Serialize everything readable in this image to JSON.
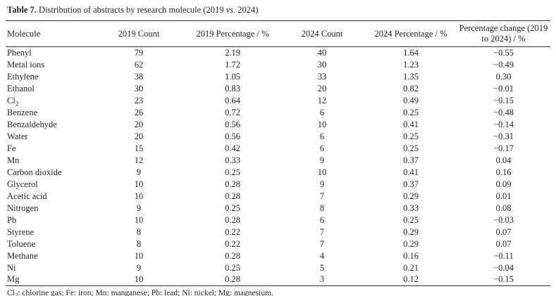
{
  "title": {
    "label": "Table 7.",
    "text": " Distribution of abstracts by research molecule (2019 ",
    "italic": "vs.",
    "suffix": " 2024)"
  },
  "table": {
    "headers": [
      "Molecule",
      "2019 Count",
      "2019 Percentage / %",
      "2024 Count",
      "2024 Percentage / %",
      "Percentage change (2019 to 2024) / %"
    ],
    "rows": [
      {
        "molecule": "Phenyl",
        "sub": "",
        "count_2019": "79",
        "pct_2019": "2.19",
        "count_2024": "40",
        "pct_2024": "1.64",
        "change": "−0.55"
      },
      {
        "molecule": "Metal ions",
        "sub": "",
        "count_2019": "62",
        "pct_2019": "1.72",
        "count_2024": "30",
        "pct_2024": "1.23",
        "change": "−0.49"
      },
      {
        "molecule": "Ethylene",
        "sub": "",
        "count_2019": "38",
        "pct_2019": "1.05",
        "count_2024": "33",
        "pct_2024": "1.35",
        "change": "0.30"
      },
      {
        "molecule": "Ethanol",
        "sub": "",
        "count_2019": "30",
        "pct_2019": "0.83",
        "count_2024": "20",
        "pct_2024": "0.82",
        "change": "−0.01"
      },
      {
        "molecule": "Cl",
        "sub": "2",
        "count_2019": "23",
        "pct_2019": "0.64",
        "count_2024": "12",
        "pct_2024": "0.49",
        "change": "−0.15"
      },
      {
        "molecule": "Benzene",
        "sub": "",
        "count_2019": "26",
        "pct_2019": "0.72",
        "count_2024": "6",
        "pct_2024": "0.25",
        "change": "−0.48"
      },
      {
        "molecule": "Benzaldehyde",
        "sub": "",
        "count_2019": "20",
        "pct_2019": "0.56",
        "count_2024": "10",
        "pct_2024": "0.41",
        "change": "−0.14"
      },
      {
        "molecule": "Water",
        "sub": "",
        "count_2019": "20",
        "pct_2019": "0.56",
        "count_2024": "6",
        "pct_2024": "0.25",
        "change": "−0.31"
      },
      {
        "molecule": "Fe",
        "sub": "",
        "count_2019": "15",
        "pct_2019": "0.42",
        "count_2024": "6",
        "pct_2024": "0.25",
        "change": "−0.17"
      },
      {
        "molecule": "Mn",
        "sub": "",
        "count_2019": "12",
        "pct_2019": "0.33",
        "count_2024": "9",
        "pct_2024": "0.37",
        "change": "0.04"
      },
      {
        "molecule": "Carbon dioxide",
        "sub": "",
        "count_2019": "9",
        "pct_2019": "0.25",
        "count_2024": "10",
        "pct_2024": "0.41",
        "change": "0.16"
      },
      {
        "molecule": "Glycerol",
        "sub": "",
        "count_2019": "10",
        "pct_2019": "0.28",
        "count_2024": "9",
        "pct_2024": "0.37",
        "change": "0.09"
      },
      {
        "molecule": "Acetic acid",
        "sub": "",
        "count_2019": "10",
        "pct_2019": "0.28",
        "count_2024": "7",
        "pct_2024": "0.29",
        "change": "0.01"
      },
      {
        "molecule": "Nitrogen",
        "sub": "",
        "count_2019": "9",
        "pct_2019": "0.25",
        "count_2024": "8",
        "pct_2024": "0.33",
        "change": "0.08"
      },
      {
        "molecule": "Pb",
        "sub": "",
        "count_2019": "10",
        "pct_2019": "0.28",
        "count_2024": "6",
        "pct_2024": "0.25",
        "change": "−0.03"
      },
      {
        "molecule": "Styrene",
        "sub": "",
        "count_2019": "8",
        "pct_2019": "0.22",
        "count_2024": "7",
        "pct_2024": "0.29",
        "change": "0.07"
      },
      {
        "molecule": "Toluene",
        "sub": "",
        "count_2019": "8",
        "pct_2019": "0.22",
        "count_2024": "7",
        "pct_2024": "0.29",
        "change": "0.07"
      },
      {
        "molecule": "Methane",
        "sub": "",
        "count_2019": "10",
        "pct_2019": "0.28",
        "count_2024": "4",
        "pct_2024": "0.16",
        "change": "−0.11"
      },
      {
        "molecule": "Ni",
        "sub": "",
        "count_2019": "9",
        "pct_2019": "0.25",
        "count_2024": "5",
        "pct_2024": "0.21",
        "change": "−0.04"
      },
      {
        "molecule": "Mg",
        "sub": "",
        "count_2019": "10",
        "pct_2019": "0.28",
        "count_2024": "3",
        "pct_2024": "0.12",
        "change": "−0.15"
      }
    ]
  },
  "footnote": {
    "pre": "Cl",
    "sub": "2",
    "post": ": chlorine gas; Fe: iron; Mn: manganese; Pb: lead; Ni: nickel; Mg: magnesium."
  },
  "colors": {
    "text": "#262626",
    "rule": "#2e2e2e",
    "background": "#ffffff"
  }
}
